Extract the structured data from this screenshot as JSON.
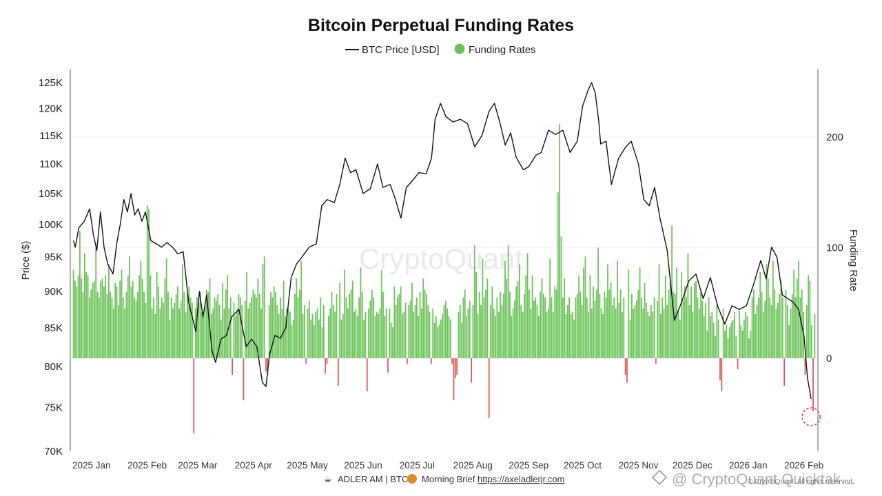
{
  "chart_data": {
    "type": "bar",
    "title": "Bitcoin Perpetual Funding Rates",
    "legend": [
      {
        "label": "BTC Price [USD]",
        "symbol": "line",
        "color": "#111111"
      },
      {
        "label": "Funding Rates",
        "symbol": "dot",
        "color": "#6cc35a"
      }
    ],
    "legend_position": "top-center",
    "y_left_label": "Price ($)",
    "y_right_label": "Funding Rate",
    "y_left_ticks": [
      "125K",
      "120K",
      "115K",
      "110K",
      "105K",
      "100K",
      "95K",
      "90K",
      "85K",
      "80K",
      "75K",
      "70K"
    ],
    "y_left_values": [
      125000,
      120000,
      115000,
      110000,
      105000,
      100000,
      95000,
      90000,
      85000,
      80000,
      75000,
      70000
    ],
    "y_left_scale": "log",
    "y_left_range": [
      70000,
      128000
    ],
    "y_right_ticks": [
      "200",
      "100",
      "0"
    ],
    "y_right_values": [
      200,
      100,
      0
    ],
    "y_right_range": [
      -75,
      262
    ],
    "x_ticks": [
      "2025 Jan",
      "2025 Feb",
      "2025 Mar",
      "2025 Apr",
      "2025 May",
      "2025 Jun",
      "2025 Jul",
      "2025 Aug",
      "2025 Sep",
      "2025 Oct",
      "2025 Nov",
      "2025 Dec",
      "2026 Jan",
      "2026 Feb"
    ],
    "x_range": [
      "2024-12-21",
      "2026-02-08"
    ],
    "grid": false,
    "price_series": {
      "name": "BTC Price [USD]",
      "dates": [
        "2024-12-22",
        "2024-12-23",
        "2024-12-25",
        "2024-12-28",
        "2024-12-31",
        "2025-01-02",
        "2025-01-04",
        "2025-01-06",
        "2025-01-08",
        "2025-01-10",
        "2025-01-13",
        "2025-01-15",
        "2025-01-17",
        "2025-01-19",
        "2025-01-21",
        "2025-01-23",
        "2025-01-25",
        "2025-01-27",
        "2025-01-29",
        "2025-01-31",
        "2025-02-02",
        "2025-02-03",
        "2025-02-06",
        "2025-02-09",
        "2025-02-12",
        "2025-02-15",
        "2025-02-18",
        "2025-02-21",
        "2025-02-24",
        "2025-02-26",
        "2025-02-28",
        "2025-03-02",
        "2025-03-04",
        "2025-03-06",
        "2025-03-09",
        "2025-03-11",
        "2025-03-14",
        "2025-03-17",
        "2025-03-20",
        "2025-03-24",
        "2025-03-28",
        "2025-03-31",
        "2025-04-03",
        "2025-04-06",
        "2025-04-08",
        "2025-04-10",
        "2025-04-13",
        "2025-04-16",
        "2025-04-19",
        "2025-04-22",
        "2025-04-25",
        "2025-04-28",
        "2025-05-02",
        "2025-05-06",
        "2025-05-09",
        "2025-05-12",
        "2025-05-16",
        "2025-05-19",
        "2025-05-22",
        "2025-05-25",
        "2025-05-28",
        "2025-06-01",
        "2025-06-05",
        "2025-06-09",
        "2025-06-12",
        "2025-06-16",
        "2025-06-19",
        "2025-06-22",
        "2025-06-25",
        "2025-06-28",
        "2025-07-02",
        "2025-07-06",
        "2025-07-09",
        "2025-07-11",
        "2025-07-14",
        "2025-07-17",
        "2025-07-21",
        "2025-07-25",
        "2025-07-29",
        "2025-08-02",
        "2025-08-06",
        "2025-08-10",
        "2025-08-13",
        "2025-08-16",
        "2025-08-19",
        "2025-08-22",
        "2025-08-25",
        "2025-08-29",
        "2025-09-01",
        "2025-09-05",
        "2025-09-08",
        "2025-09-12",
        "2025-09-16",
        "2025-09-20",
        "2025-09-24",
        "2025-09-28",
        "2025-10-01",
        "2025-10-04",
        "2025-10-06",
        "2025-10-08",
        "2025-10-10",
        "2025-10-11",
        "2025-10-14",
        "2025-10-17",
        "2025-10-21",
        "2025-10-25",
        "2025-10-28",
        "2025-11-01",
        "2025-11-04",
        "2025-11-07",
        "2025-11-10",
        "2025-11-13",
        "2025-11-17",
        "2025-11-21",
        "2025-11-25",
        "2025-11-29",
        "2025-12-03",
        "2025-12-07",
        "2025-12-11",
        "2025-12-15",
        "2025-12-19",
        "2025-12-23",
        "2025-12-27",
        "2025-12-31",
        "2026-01-04",
        "2026-01-08",
        "2026-01-11",
        "2026-01-14",
        "2026-01-17",
        "2026-01-20",
        "2026-01-23",
        "2026-01-26",
        "2026-01-29",
        "2026-02-01",
        "2026-02-03",
        "2026-02-05"
      ],
      "values": [
        97500,
        96500,
        99500,
        100500,
        102500,
        98500,
        96000,
        102000,
        96500,
        94000,
        92500,
        97000,
        100000,
        104000,
        102000,
        105000,
        101500,
        102500,
        100500,
        102000,
        99000,
        97500,
        97000,
        96500,
        97200,
        96500,
        95500,
        95800,
        88500,
        86500,
        84500,
        90000,
        86500,
        89500,
        82000,
        80500,
        83500,
        84000,
        86500,
        87500,
        82500,
        83500,
        82500,
        78000,
        77500,
        81500,
        84000,
        83600,
        85000,
        92000,
        94000,
        95000,
        96500,
        97000,
        103000,
        104000,
        103500,
        106500,
        111000,
        108500,
        109000,
        105000,
        105800,
        110000,
        106000,
        106500,
        104000,
        101000,
        106000,
        107000,
        108500,
        108300,
        111000,
        118000,
        121000,
        118500,
        117500,
        118000,
        117200,
        113000,
        115000,
        119500,
        121000,
        117400,
        113300,
        115500,
        111200,
        109000,
        109500,
        111500,
        112000,
        116000,
        115200,
        116000,
        112000,
        114000,
        120500,
        123500,
        125000,
        123000,
        117500,
        113500,
        114000,
        106500,
        111000,
        113000,
        114000,
        110000,
        104000,
        103000,
        106000,
        101000,
        96000,
        86000,
        88500,
        91500,
        92500,
        89000,
        92000,
        88000,
        85500,
        88000,
        87500,
        88000,
        91000,
        94500,
        91800,
        96500,
        95000,
        89500,
        89000,
        88500,
        87500,
        84000,
        78500,
        76000
      ]
    },
    "funding_series": {
      "name": "Funding Rates",
      "positive_color": "#6cc35a",
      "negative_color": "#e05a5a",
      "values": [
        80,
        70,
        65,
        75,
        115,
        72,
        60,
        95,
        78,
        75,
        55,
        62,
        68,
        70,
        100,
        60,
        55,
        70,
        72,
        65,
        75,
        58,
        85,
        60,
        55,
        45,
        68,
        65,
        48,
        70,
        80,
        55,
        45,
        60,
        75,
        92,
        65,
        70,
        55,
        52,
        60,
        75,
        88,
        72,
        60,
        50,
        138,
        135,
        75,
        45,
        55,
        40,
        78,
        65,
        45,
        55,
        50,
        72,
        90,
        60,
        35,
        55,
        45,
        50,
        58,
        65,
        45,
        52,
        85,
        60,
        42,
        58,
        65,
        55,
        50,
        -68,
        45,
        55,
        50,
        60,
        42,
        38,
        48,
        62,
        60,
        72,
        40,
        45,
        55,
        52,
        58,
        48,
        35,
        68,
        45,
        62,
        75,
        45,
        55,
        -15,
        50,
        38,
        45,
        58,
        55,
        48,
        -38,
        52,
        78,
        45,
        50,
        55,
        62,
        58,
        55,
        72,
        58,
        45,
        85,
        92,
        -12,
        -15,
        48,
        60,
        55,
        65,
        60,
        48,
        40,
        55,
        45,
        70,
        38,
        45,
        45,
        42,
        30,
        35,
        58,
        72,
        55,
        62,
        88,
        40,
        48,
        -5,
        45,
        52,
        35,
        40,
        30,
        42,
        45,
        35,
        55,
        28,
        48,
        -14,
        -5,
        38,
        45,
        60,
        48,
        42,
        58,
        -25,
        68,
        35,
        40,
        80,
        55,
        45,
        58,
        62,
        70,
        42,
        45,
        38,
        55,
        82,
        60,
        35,
        42,
        -30,
        45,
        52,
        62,
        55,
        38,
        42,
        40,
        45,
        80,
        60,
        38,
        45,
        -13,
        45,
        32,
        28,
        65,
        48,
        55,
        58,
        65,
        40,
        42,
        50,
        -5,
        48,
        52,
        68,
        42,
        48,
        55,
        38,
        60,
        45,
        72,
        62,
        58,
        48,
        42,
        -5,
        45,
        32,
        38,
        28,
        30,
        35,
        40,
        48,
        52,
        45,
        38,
        35,
        -5,
        -38,
        -18,
        -15,
        42,
        48,
        32,
        55,
        62,
        38,
        45,
        52,
        -22,
        48,
        102,
        78,
        40,
        60,
        48,
        90,
        55,
        62,
        72,
        -54,
        48,
        65,
        45,
        38,
        55,
        42,
        60,
        48,
        58,
        88,
        72,
        102,
        60,
        38,
        45,
        52,
        65,
        70,
        85,
        48,
        42,
        58,
        75,
        95,
        62,
        45,
        75,
        52,
        55,
        48,
        38,
        60,
        72,
        58,
        55,
        42,
        45,
        90,
        55,
        42,
        65,
        62,
        150,
        212,
        110,
        55,
        72,
        40,
        48,
        55,
        40,
        42,
        35,
        55,
        58,
        75,
        60,
        48,
        82,
        92,
        55,
        42,
        75,
        45,
        65,
        52,
        62,
        100,
        58,
        45,
        40,
        60,
        55,
        85,
        62,
        68,
        48,
        55,
        45,
        88,
        50,
        62,
        42,
        55,
        -15,
        -22,
        80,
        35,
        58,
        45,
        48,
        52,
        62,
        82,
        55,
        45,
        68,
        50,
        42,
        38,
        48,
        42,
        55,
        -5,
        52,
        85,
        40,
        55,
        45,
        75,
        48,
        62,
        70,
        120,
        60,
        58,
        82,
        42,
        35,
        78,
        52,
        65,
        55,
        95,
        48,
        65,
        42,
        68,
        70,
        55,
        45,
        60,
        52,
        38,
        50,
        25,
        55,
        38,
        42,
        32,
        20,
        48,
        35,
        -20,
        -30,
        45,
        25,
        30,
        18,
        28,
        32,
        35,
        42,
        20,
        -10,
        45,
        30,
        25,
        35,
        42,
        38,
        18,
        25,
        55,
        62,
        40,
        48,
        55,
        78,
        60,
        42,
        52,
        85,
        72,
        55,
        48,
        88,
        62,
        45,
        50,
        58,
        70,
        55,
        -25,
        62,
        48,
        30,
        45,
        58,
        80,
        55,
        72,
        88,
        55,
        62,
        42,
        -15,
        48,
        75,
        70,
        30,
        -48,
        40
      ]
    },
    "annotations": [
      {
        "type": "dashed-circle",
        "at_date": "2026-02-05",
        "note": ""
      }
    ]
  },
  "watermark": "CryptoQuant",
  "footer": {
    "source": "ADLER AM | BTC",
    "brief": "Morning Brief",
    "url": "https://axeladlerjr.com"
  },
  "overlay": {
    "text": "@ CryptoQuant Quicktak…",
    "credit": "© CryptoQuant. All rights reserved."
  }
}
